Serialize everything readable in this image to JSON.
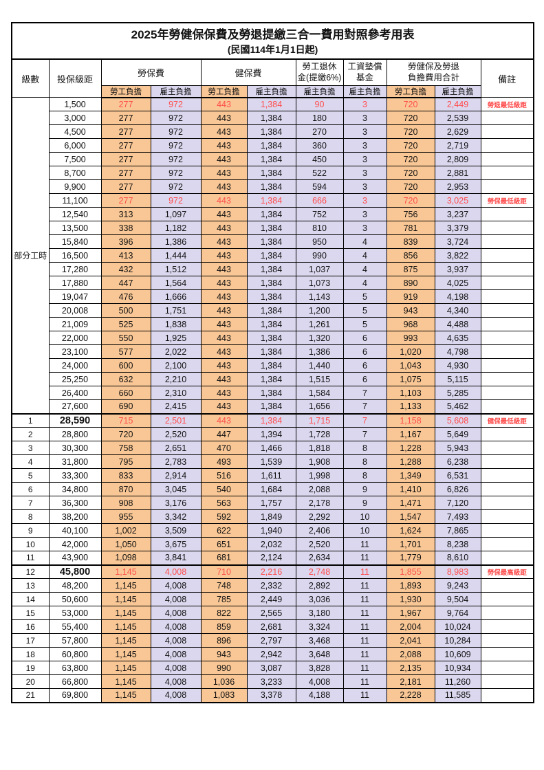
{
  "page": {
    "title": "2025年勞健保保費及勞退提繳三合一費用對照參考用表",
    "subtitle": "(民國114年1月1日起)"
  },
  "colors": {
    "employee_bg": "#F9C795",
    "employer_bg": "#DBD7EE",
    "highlight_text": "#FF4D4D",
    "border": "#000000"
  },
  "table": {
    "header": {
      "level": "級數",
      "bracket": "投保級距",
      "labor_insurance": "勞保費",
      "health_insurance": "健保費",
      "pension_line1": "勞工退休",
      "pension_line2": "金(提繳6%)",
      "wage_fund_line1": "工資墊償",
      "wage_fund_line2": "基金",
      "total_line1": "勞健保及勞退",
      "total_line2": "負擔費用合計",
      "remark": "備註",
      "employee_share": "勞工負擔",
      "employer_share": "雇主負擔"
    },
    "group_label": "部分工時",
    "rows": [
      {
        "lv": null,
        "br": "1,500",
        "v": [
          "277",
          "972",
          "443",
          "1,384",
          "90",
          "3",
          "720",
          "2,449"
        ],
        "rm": "勞退最低級距",
        "red": true,
        "big": false,
        "thick": false
      },
      {
        "lv": null,
        "br": "3,000",
        "v": [
          "277",
          "972",
          "443",
          "1,384",
          "180",
          "3",
          "720",
          "2,539"
        ],
        "rm": "",
        "red": false,
        "big": false,
        "thick": false
      },
      {
        "lv": null,
        "br": "4,500",
        "v": [
          "277",
          "972",
          "443",
          "1,384",
          "270",
          "3",
          "720",
          "2,629"
        ],
        "rm": "",
        "red": false,
        "big": false,
        "thick": false
      },
      {
        "lv": null,
        "br": "6,000",
        "v": [
          "277",
          "972",
          "443",
          "1,384",
          "360",
          "3",
          "720",
          "2,719"
        ],
        "rm": "",
        "red": false,
        "big": false,
        "thick": false
      },
      {
        "lv": null,
        "br": "7,500",
        "v": [
          "277",
          "972",
          "443",
          "1,384",
          "450",
          "3",
          "720",
          "2,809"
        ],
        "rm": "",
        "red": false,
        "big": false,
        "thick": false
      },
      {
        "lv": null,
        "br": "8,700",
        "v": [
          "277",
          "972",
          "443",
          "1,384",
          "522",
          "3",
          "720",
          "2,881"
        ],
        "rm": "",
        "red": false,
        "big": false,
        "thick": false
      },
      {
        "lv": null,
        "br": "9,900",
        "v": [
          "277",
          "972",
          "443",
          "1,384",
          "594",
          "3",
          "720",
          "2,953"
        ],
        "rm": "",
        "red": false,
        "big": false,
        "thick": false
      },
      {
        "lv": null,
        "br": "11,100",
        "v": [
          "277",
          "972",
          "443",
          "1,384",
          "666",
          "3",
          "720",
          "3,025"
        ],
        "rm": "勞保最低級距",
        "red": true,
        "big": false,
        "thick": false
      },
      {
        "lv": null,
        "br": "12,540",
        "v": [
          "313",
          "1,097",
          "443",
          "1,384",
          "752",
          "3",
          "756",
          "3,237"
        ],
        "rm": "",
        "red": false,
        "big": false,
        "thick": false
      },
      {
        "lv": null,
        "br": "13,500",
        "v": [
          "338",
          "1,182",
          "443",
          "1,384",
          "810",
          "3",
          "781",
          "3,379"
        ],
        "rm": "",
        "red": false,
        "big": false,
        "thick": false
      },
      {
        "lv": null,
        "br": "15,840",
        "v": [
          "396",
          "1,386",
          "443",
          "1,384",
          "950",
          "4",
          "839",
          "3,724"
        ],
        "rm": "",
        "red": false,
        "big": false,
        "thick": false
      },
      {
        "lv": null,
        "br": "16,500",
        "v": [
          "413",
          "1,444",
          "443",
          "1,384",
          "990",
          "4",
          "856",
          "3,822"
        ],
        "rm": "",
        "red": false,
        "big": false,
        "thick": false
      },
      {
        "lv": null,
        "br": "17,280",
        "v": [
          "432",
          "1,512",
          "443",
          "1,384",
          "1,037",
          "4",
          "875",
          "3,937"
        ],
        "rm": "",
        "red": false,
        "big": false,
        "thick": false
      },
      {
        "lv": null,
        "br": "17,880",
        "v": [
          "447",
          "1,564",
          "443",
          "1,384",
          "1,073",
          "4",
          "890",
          "4,025"
        ],
        "rm": "",
        "red": false,
        "big": false,
        "thick": false
      },
      {
        "lv": null,
        "br": "19,047",
        "v": [
          "476",
          "1,666",
          "443",
          "1,384",
          "1,143",
          "5",
          "919",
          "4,198"
        ],
        "rm": "",
        "red": false,
        "big": false,
        "thick": false
      },
      {
        "lv": null,
        "br": "20,008",
        "v": [
          "500",
          "1,751",
          "443",
          "1,384",
          "1,200",
          "5",
          "943",
          "4,340"
        ],
        "rm": "",
        "red": false,
        "big": false,
        "thick": false
      },
      {
        "lv": null,
        "br": "21,009",
        "v": [
          "525",
          "1,838",
          "443",
          "1,384",
          "1,261",
          "5",
          "968",
          "4,488"
        ],
        "rm": "",
        "red": false,
        "big": false,
        "thick": false
      },
      {
        "lv": null,
        "br": "22,000",
        "v": [
          "550",
          "1,925",
          "443",
          "1,384",
          "1,320",
          "6",
          "993",
          "4,635"
        ],
        "rm": "",
        "red": false,
        "big": false,
        "thick": false
      },
      {
        "lv": null,
        "br": "23,100",
        "v": [
          "577",
          "2,022",
          "443",
          "1,384",
          "1,386",
          "6",
          "1,020",
          "4,798"
        ],
        "rm": "",
        "red": false,
        "big": false,
        "thick": false
      },
      {
        "lv": null,
        "br": "24,000",
        "v": [
          "600",
          "2,100",
          "443",
          "1,384",
          "1,440",
          "6",
          "1,043",
          "4,930"
        ],
        "rm": "",
        "red": false,
        "big": false,
        "thick": false
      },
      {
        "lv": null,
        "br": "25,250",
        "v": [
          "632",
          "2,210",
          "443",
          "1,384",
          "1,515",
          "6",
          "1,075",
          "5,115"
        ],
        "rm": "",
        "red": false,
        "big": false,
        "thick": false
      },
      {
        "lv": null,
        "br": "26,400",
        "v": [
          "660",
          "2,310",
          "443",
          "1,384",
          "1,584",
          "7",
          "1,103",
          "5,285"
        ],
        "rm": "",
        "red": false,
        "big": false,
        "thick": false
      },
      {
        "lv": null,
        "br": "27,600",
        "v": [
          "690",
          "2,415",
          "443",
          "1,384",
          "1,656",
          "7",
          "1,133",
          "5,462"
        ],
        "rm": "",
        "red": false,
        "big": false,
        "thick": false
      },
      {
        "lv": "1",
        "br": "28,590",
        "v": [
          "715",
          "2,501",
          "443",
          "1,384",
          "1,715",
          "7",
          "1,158",
          "5,608"
        ],
        "rm": "健保最低級距",
        "red": true,
        "big": true,
        "thick": true
      },
      {
        "lv": "2",
        "br": "28,800",
        "v": [
          "720",
          "2,520",
          "447",
          "1,394",
          "1,728",
          "7",
          "1,167",
          "5,649"
        ],
        "rm": "",
        "red": false,
        "big": false,
        "thick": false
      },
      {
        "lv": "3",
        "br": "30,300",
        "v": [
          "758",
          "2,651",
          "470",
          "1,466",
          "1,818",
          "8",
          "1,228",
          "5,943"
        ],
        "rm": "",
        "red": false,
        "big": false,
        "thick": false
      },
      {
        "lv": "4",
        "br": "31,800",
        "v": [
          "795",
          "2,783",
          "493",
          "1,539",
          "1,908",
          "8",
          "1,288",
          "6,238"
        ],
        "rm": "",
        "red": false,
        "big": false,
        "thick": false
      },
      {
        "lv": "5",
        "br": "33,300",
        "v": [
          "833",
          "2,914",
          "516",
          "1,611",
          "1,998",
          "8",
          "1,349",
          "6,531"
        ],
        "rm": "",
        "red": false,
        "big": false,
        "thick": false
      },
      {
        "lv": "6",
        "br": "34,800",
        "v": [
          "870",
          "3,045",
          "540",
          "1,684",
          "2,088",
          "9",
          "1,410",
          "6,826"
        ],
        "rm": "",
        "red": false,
        "big": false,
        "thick": false
      },
      {
        "lv": "7",
        "br": "36,300",
        "v": [
          "908",
          "3,176",
          "563",
          "1,757",
          "2,178",
          "9",
          "1,471",
          "7,120"
        ],
        "rm": "",
        "red": false,
        "big": false,
        "thick": false
      },
      {
        "lv": "8",
        "br": "38,200",
        "v": [
          "955",
          "3,342",
          "592",
          "1,849",
          "2,292",
          "10",
          "1,547",
          "7,493"
        ],
        "rm": "",
        "red": false,
        "big": false,
        "thick": false
      },
      {
        "lv": "9",
        "br": "40,100",
        "v": [
          "1,002",
          "3,509",
          "622",
          "1,940",
          "2,406",
          "10",
          "1,624",
          "7,865"
        ],
        "rm": "",
        "red": false,
        "big": false,
        "thick": false
      },
      {
        "lv": "10",
        "br": "42,000",
        "v": [
          "1,050",
          "3,675",
          "651",
          "2,032",
          "2,520",
          "11",
          "1,701",
          "8,238"
        ],
        "rm": "",
        "red": false,
        "big": false,
        "thick": false
      },
      {
        "lv": "11",
        "br": "43,900",
        "v": [
          "1,098",
          "3,841",
          "681",
          "2,124",
          "2,634",
          "11",
          "1,779",
          "8,610"
        ],
        "rm": "",
        "red": false,
        "big": false,
        "thick": false
      },
      {
        "lv": "12",
        "br": "45,800",
        "v": [
          "1,145",
          "4,008",
          "710",
          "2,216",
          "2,748",
          "11",
          "1,855",
          "8,983"
        ],
        "rm": "勞保最高級距",
        "red": true,
        "big": true,
        "thick": true
      },
      {
        "lv": "13",
        "br": "48,200",
        "v": [
          "1,145",
          "4,008",
          "748",
          "2,332",
          "2,892",
          "11",
          "1,893",
          "9,243"
        ],
        "rm": "",
        "red": false,
        "big": false,
        "thick": false
      },
      {
        "lv": "14",
        "br": "50,600",
        "v": [
          "1,145",
          "4,008",
          "785",
          "2,449",
          "3,036",
          "11",
          "1,930",
          "9,504"
        ],
        "rm": "",
        "red": false,
        "big": false,
        "thick": false
      },
      {
        "lv": "15",
        "br": "53,000",
        "v": [
          "1,145",
          "4,008",
          "822",
          "2,565",
          "3,180",
          "11",
          "1,967",
          "9,764"
        ],
        "rm": "",
        "red": false,
        "big": false,
        "thick": false
      },
      {
        "lv": "16",
        "br": "55,400",
        "v": [
          "1,145",
          "4,008",
          "859",
          "2,681",
          "3,324",
          "11",
          "2,004",
          "10,024"
        ],
        "rm": "",
        "red": false,
        "big": false,
        "thick": false
      },
      {
        "lv": "17",
        "br": "57,800",
        "v": [
          "1,145",
          "4,008",
          "896",
          "2,797",
          "3,468",
          "11",
          "2,041",
          "10,284"
        ],
        "rm": "",
        "red": false,
        "big": false,
        "thick": false
      },
      {
        "lv": "18",
        "br": "60,800",
        "v": [
          "1,145",
          "4,008",
          "943",
          "2,942",
          "3,648",
          "11",
          "2,088",
          "10,609"
        ],
        "rm": "",
        "red": false,
        "big": false,
        "thick": false
      },
      {
        "lv": "19",
        "br": "63,800",
        "v": [
          "1,145",
          "4,008",
          "990",
          "3,087",
          "3,828",
          "11",
          "2,135",
          "10,934"
        ],
        "rm": "",
        "red": false,
        "big": false,
        "thick": false
      },
      {
        "lv": "20",
        "br": "66,800",
        "v": [
          "1,145",
          "4,008",
          "1,036",
          "3,233",
          "4,008",
          "11",
          "2,181",
          "11,260"
        ],
        "rm": "",
        "red": false,
        "big": false,
        "thick": false
      },
      {
        "lv": "21",
        "br": "69,800",
        "v": [
          "1,145",
          "4,008",
          "1,083",
          "3,378",
          "4,188",
          "11",
          "2,228",
          "11,585"
        ],
        "rm": "",
        "red": false,
        "big": false,
        "thick": false
      }
    ]
  }
}
